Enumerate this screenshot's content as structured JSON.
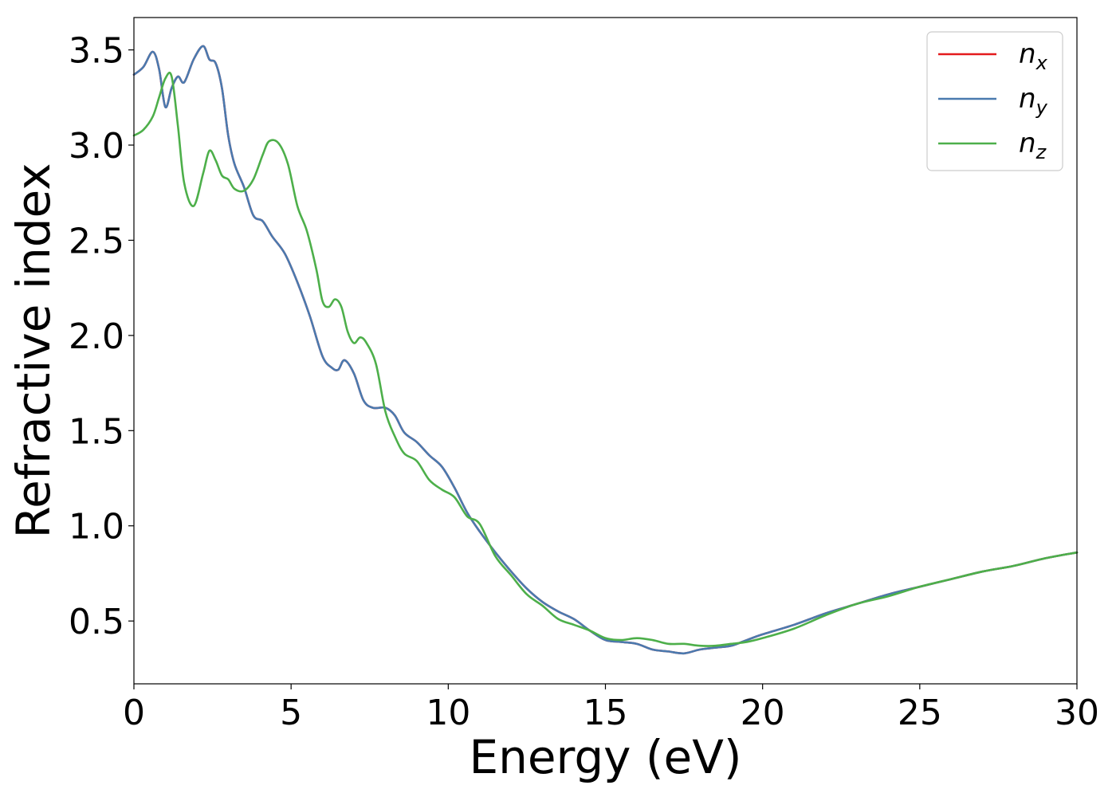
{
  "chart_data": {
    "type": "line",
    "title": "",
    "xlabel": "Energy (eV)",
    "ylabel": "Refractive index",
    "xlim": [
      0,
      30
    ],
    "ylim": [
      0.17,
      3.67
    ],
    "xticks": [
      0,
      5,
      10,
      15,
      20,
      25,
      30
    ],
    "xtick_labels": [
      "0",
      "5",
      "10",
      "15",
      "20",
      "25",
      "30"
    ],
    "yticks": [
      0.5,
      1.0,
      1.5,
      2.0,
      2.5,
      3.0,
      3.5
    ],
    "ytick_labels": [
      "0.5",
      "1.0",
      "1.5",
      "2.0",
      "2.5",
      "3.0",
      "3.5"
    ],
    "grid": false,
    "legend_position": "top-right",
    "series": [
      {
        "name": "n_x",
        "legend_base": "n",
        "legend_sub": "x",
        "color": "#e41a1c",
        "x": [
          0,
          0.3,
          0.6,
          0.8,
          1.0,
          1.2,
          1.4,
          1.6,
          1.9,
          2.2,
          2.4,
          2.6,
          2.8,
          3.0,
          3.2,
          3.5,
          3.8,
          4.1,
          4.4,
          4.8,
          5.2,
          5.6,
          6.0,
          6.3,
          6.5,
          6.7,
          7.0,
          7.3,
          7.6,
          8.0,
          8.3,
          8.6,
          9.0,
          9.4,
          9.8,
          10.2,
          10.6,
          11.0,
          11.5,
          12.0,
          12.5,
          13.0,
          13.5,
          14.0,
          14.5,
          15.0,
          15.5,
          16.0,
          16.5,
          17.0,
          17.5,
          18.0,
          18.5,
          19.0,
          19.5,
          20.0,
          21.0,
          22.0,
          23.0,
          24.0,
          25.0,
          26.0,
          27.0,
          28.0,
          29.0,
          30.0
        ],
        "y": [
          3.37,
          3.41,
          3.49,
          3.4,
          3.2,
          3.3,
          3.36,
          3.33,
          3.45,
          3.52,
          3.45,
          3.43,
          3.3,
          3.05,
          2.9,
          2.78,
          2.63,
          2.6,
          2.52,
          2.43,
          2.28,
          2.1,
          1.89,
          1.83,
          1.82,
          1.87,
          1.8,
          1.66,
          1.62,
          1.62,
          1.58,
          1.49,
          1.44,
          1.37,
          1.31,
          1.2,
          1.07,
          0.97,
          0.86,
          0.76,
          0.67,
          0.6,
          0.55,
          0.51,
          0.45,
          0.4,
          0.39,
          0.38,
          0.35,
          0.34,
          0.33,
          0.35,
          0.36,
          0.37,
          0.4,
          0.43,
          0.48,
          0.54,
          0.59,
          0.64,
          0.68,
          0.72,
          0.76,
          0.79,
          0.83,
          0.86
        ]
      },
      {
        "name": "n_y",
        "legend_base": "n",
        "legend_sub": "y",
        "color": "#4a7aaf",
        "x": [
          0,
          0.3,
          0.6,
          0.8,
          1.0,
          1.2,
          1.4,
          1.6,
          1.9,
          2.2,
          2.4,
          2.6,
          2.8,
          3.0,
          3.2,
          3.5,
          3.8,
          4.1,
          4.4,
          4.8,
          5.2,
          5.6,
          6.0,
          6.3,
          6.5,
          6.7,
          7.0,
          7.3,
          7.6,
          8.0,
          8.3,
          8.6,
          9.0,
          9.4,
          9.8,
          10.2,
          10.6,
          11.0,
          11.5,
          12.0,
          12.5,
          13.0,
          13.5,
          14.0,
          14.5,
          15.0,
          15.5,
          16.0,
          16.5,
          17.0,
          17.5,
          18.0,
          18.5,
          19.0,
          19.5,
          20.0,
          21.0,
          22.0,
          23.0,
          24.0,
          25.0,
          26.0,
          27.0,
          28.0,
          29.0,
          30.0
        ],
        "y": [
          3.37,
          3.41,
          3.49,
          3.4,
          3.2,
          3.3,
          3.36,
          3.33,
          3.45,
          3.52,
          3.45,
          3.43,
          3.3,
          3.05,
          2.9,
          2.78,
          2.63,
          2.6,
          2.52,
          2.43,
          2.28,
          2.1,
          1.89,
          1.83,
          1.82,
          1.87,
          1.8,
          1.66,
          1.62,
          1.62,
          1.58,
          1.49,
          1.44,
          1.37,
          1.31,
          1.2,
          1.07,
          0.97,
          0.86,
          0.76,
          0.67,
          0.6,
          0.55,
          0.51,
          0.45,
          0.4,
          0.39,
          0.38,
          0.35,
          0.34,
          0.33,
          0.35,
          0.36,
          0.37,
          0.4,
          0.43,
          0.48,
          0.54,
          0.59,
          0.64,
          0.68,
          0.72,
          0.76,
          0.79,
          0.83,
          0.86
        ]
      },
      {
        "name": "n_z",
        "legend_base": "n",
        "legend_sub": "z",
        "color": "#4daf4a",
        "x": [
          0,
          0.3,
          0.6,
          0.8,
          1.0,
          1.2,
          1.4,
          1.6,
          1.9,
          2.2,
          2.4,
          2.6,
          2.8,
          3.0,
          3.2,
          3.5,
          3.8,
          4.1,
          4.3,
          4.6,
          4.9,
          5.2,
          5.5,
          5.8,
          6.0,
          6.2,
          6.4,
          6.6,
          6.8,
          7.0,
          7.2,
          7.4,
          7.7,
          8.0,
          8.3,
          8.6,
          9.0,
          9.4,
          9.8,
          10.2,
          10.6,
          11.0,
          11.5,
          12.0,
          12.5,
          13.0,
          13.5,
          14.0,
          14.5,
          15.0,
          15.5,
          16.0,
          16.5,
          17.0,
          17.5,
          18.0,
          18.5,
          19.0,
          19.5,
          20.0,
          21.0,
          22.0,
          23.0,
          24.0,
          25.0,
          26.0,
          27.0,
          28.0,
          29.0,
          30.0
        ],
        "y": [
          3.05,
          3.08,
          3.15,
          3.25,
          3.35,
          3.36,
          3.1,
          2.8,
          2.68,
          2.85,
          2.97,
          2.92,
          2.84,
          2.82,
          2.77,
          2.76,
          2.82,
          2.95,
          3.02,
          3.01,
          2.9,
          2.68,
          2.55,
          2.35,
          2.18,
          2.15,
          2.19,
          2.15,
          2.02,
          1.96,
          1.99,
          1.96,
          1.85,
          1.6,
          1.47,
          1.38,
          1.34,
          1.24,
          1.19,
          1.15,
          1.05,
          1.01,
          0.84,
          0.74,
          0.64,
          0.58,
          0.51,
          0.48,
          0.45,
          0.41,
          0.4,
          0.41,
          0.4,
          0.38,
          0.38,
          0.37,
          0.37,
          0.38,
          0.39,
          0.41,
          0.46,
          0.53,
          0.59,
          0.63,
          0.68,
          0.72,
          0.76,
          0.79,
          0.83,
          0.86
        ]
      }
    ]
  }
}
